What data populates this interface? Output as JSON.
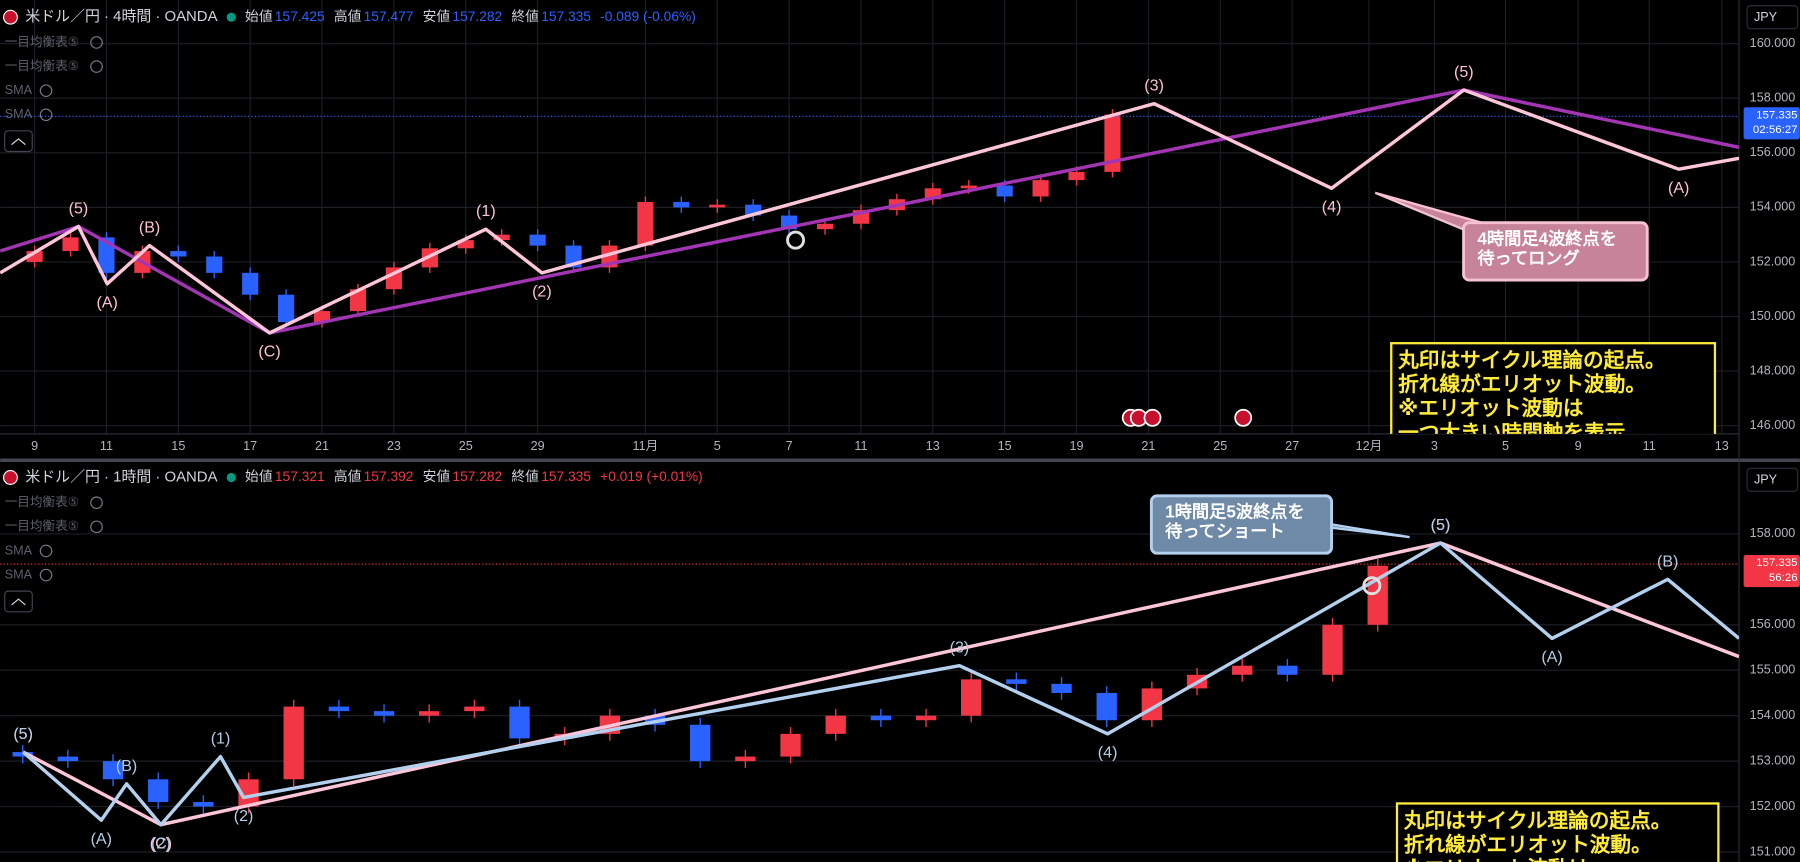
{
  "chart_data": [
    {
      "type": "candlestick",
      "title": "米ドル／円 · 4時間 · OANDA",
      "fields": [
        {
          "label": "始値",
          "value": 157.425
        },
        {
          "label": "高値",
          "value": 157.477
        },
        {
          "label": "安値",
          "value": 157.282
        },
        {
          "label": "終値",
          "value": 157.335
        }
      ],
      "change": "-0.089 (-0.06%)",
      "value_color": "#2962ff",
      "indicators": [
        "一目均衡表⑤",
        "一目均衡表⑤",
        "SMA",
        "SMA"
      ],
      "currency": "JPY",
      "last_price": 157.335,
      "countdown": "02:56:27",
      "last_color": "#2962ff",
      "up_color": "#f23645",
      "down_color": "#2962ff",
      "x": [
        0,
        0.5,
        1,
        1.5,
        2,
        2.5,
        3,
        3.5,
        4,
        4.5,
        5,
        5.5,
        6,
        6.5,
        7,
        7.5,
        8,
        8.5,
        9,
        9.5,
        10,
        10.5,
        11,
        11.5,
        12,
        12.5,
        13,
        13.5,
        14,
        14.5,
        15
      ],
      "open": [
        152.0,
        152.4,
        152.9,
        151.6,
        152.4,
        152.2,
        151.6,
        150.8,
        149.8,
        150.2,
        151.0,
        151.8,
        152.5,
        152.8,
        153.0,
        152.6,
        151.8,
        152.6,
        154.2,
        154.0,
        154.1,
        153.7,
        153.2,
        153.4,
        153.9,
        154.3,
        154.7,
        154.8,
        154.4,
        155.0,
        155.3
      ],
      "high": [
        152.6,
        153.1,
        153.1,
        152.6,
        152.6,
        152.4,
        151.8,
        151.0,
        150.4,
        151.2,
        152.0,
        152.7,
        153.0,
        153.2,
        153.2,
        152.8,
        152.8,
        154.4,
        154.4,
        154.3,
        154.3,
        153.9,
        153.6,
        154.1,
        154.5,
        154.9,
        155.0,
        155.0,
        155.2,
        155.5,
        157.6
      ],
      "low": [
        151.8,
        152.2,
        151.4,
        151.4,
        152.0,
        151.4,
        150.6,
        149.6,
        149.6,
        150.0,
        150.8,
        151.6,
        152.3,
        152.6,
        152.4,
        151.6,
        151.6,
        152.4,
        153.8,
        153.8,
        153.5,
        153.0,
        153.0,
        153.2,
        153.7,
        154.1,
        154.5,
        154.2,
        154.2,
        154.8,
        155.1
      ],
      "close": [
        152.4,
        152.9,
        151.6,
        152.4,
        152.2,
        151.6,
        150.8,
        149.8,
        150.2,
        151.0,
        151.8,
        152.5,
        152.8,
        153.0,
        152.6,
        151.8,
        152.6,
        154.2,
        154.0,
        154.1,
        153.7,
        153.2,
        153.4,
        153.9,
        154.3,
        154.7,
        154.8,
        154.4,
        155.0,
        155.3,
        157.4
      ],
      "xlim": [
        -0.48,
        23.72
      ],
      "xticks": [
        {
          "value": 0,
          "label": "9"
        },
        {
          "value": 1,
          "label": "11"
        },
        {
          "value": 2,
          "label": "15"
        },
        {
          "value": 3,
          "label": "17"
        },
        {
          "value": 4,
          "label": "21"
        },
        {
          "value": 5,
          "label": "23"
        },
        {
          "value": 6,
          "label": "25"
        },
        {
          "value": 7,
          "label": "29"
        },
        {
          "value": 8.5,
          "label": "11月"
        },
        {
          "value": 9.5,
          "label": "5"
        },
        {
          "value": 10.5,
          "label": "7"
        },
        {
          "value": 11.5,
          "label": "11"
        },
        {
          "value": 12.5,
          "label": "13"
        },
        {
          "value": 13.5,
          "label": "15"
        },
        {
          "value": 14.5,
          "label": "19"
        },
        {
          "value": 15.5,
          "label": "21"
        },
        {
          "value": 16.5,
          "label": "25"
        },
        {
          "value": 17.5,
          "label": "27"
        },
        {
          "value": 18.57,
          "label": "12月"
        },
        {
          "value": 19.48,
          "label": "3"
        },
        {
          "value": 20.47,
          "label": "5"
        },
        {
          "value": 21.48,
          "label": "9"
        },
        {
          "value": 22.47,
          "label": "11"
        },
        {
          "value": 23.48,
          "label": "13"
        }
      ],
      "ylim": [
        145.7,
        161.6
      ],
      "yticks": [
        {
          "value": 146,
          "label": "146.000"
        },
        {
          "value": 148,
          "label": "148.000"
        },
        {
          "value": 150,
          "label": "150.000"
        },
        {
          "value": 152,
          "label": "152.000"
        },
        {
          "value": 154,
          "label": "154.000"
        },
        {
          "value": 156,
          "label": "156.000"
        },
        {
          "value": 158,
          "label": "158.000"
        },
        {
          "value": 160,
          "label": "160.000"
        }
      ],
      "grid": true,
      "waves": [
        {
          "color": "#a335b5",
          "label_color": "#ffc0d8",
          "x": [
            -0.48,
            0.61,
            3.27,
            19.89,
            23.72
          ],
          "values": [
            152.4,
            153.3,
            149.4,
            158.3,
            156.2
          ],
          "labels": [
            null,
            null,
            null,
            null,
            null
          ]
        },
        {
          "color": "#ffc6d9",
          "label_color": "#ffc0d8",
          "x": [
            -0.48,
            0.61,
            1.01,
            1.6,
            3.27,
            6.28,
            7.06,
            15.58,
            18.05,
            19.89,
            22.88,
            23.72
          ],
          "values": [
            151.6,
            153.3,
            151.2,
            152.6,
            149.4,
            153.2,
            151.6,
            157.8,
            154.7,
            158.3,
            155.4,
            155.8
          ],
          "labels": [
            null,
            "(5)",
            "(A)",
            "(B)",
            "(C)",
            "(1)",
            "(2)",
            "(3)",
            "(4)",
            "(5)",
            "(A)",
            null
          ]
        }
      ],
      "cycle_marker": {
        "x": 10.59,
        "y": 152.8
      },
      "callout": {
        "lines": [
          "4時間足4波終点を",
          "待ってロング"
        ]
      },
      "note": {
        "lines": [
          "丸印はサイクル理論の起点。",
          "折れ線がエリオット波動。",
          "※エリオット波動は",
          "一つ大きい時間軸を表示"
        ]
      }
    },
    {
      "type": "candlestick",
      "title": "米ドル／円 · 1時間 · OANDA",
      "fields": [
        {
          "label": "始値",
          "value": 157.321
        },
        {
          "label": "高値",
          "value": 157.392
        },
        {
          "label": "安値",
          "value": 157.282
        },
        {
          "label": "終値",
          "value": 157.335
        }
      ],
      "change": "+0.019 (+0.01%)",
      "value_color": "#f23645",
      "indicators": [
        "一目均衡表⑤",
        "一目均衡表⑤",
        "SMA",
        "SMA"
      ],
      "currency": "JPY",
      "last_price": 157.335,
      "countdown": "56:26",
      "last_color": "#f23645",
      "up_color": "#f23645",
      "down_color": "#2962ff",
      "x": [
        0,
        1,
        2,
        3,
        4,
        5,
        6,
        7,
        8,
        9,
        10,
        11,
        12,
        13,
        14,
        15,
        16,
        17,
        18,
        19,
        20,
        21,
        22,
        23,
        24,
        25,
        26,
        27,
        28,
        29,
        30
      ],
      "open": [
        153.2,
        153.1,
        153.0,
        152.6,
        152.1,
        152.0,
        152.6,
        154.2,
        154.1,
        154.0,
        154.1,
        154.2,
        153.5,
        153.6,
        154.0,
        153.8,
        153.0,
        153.1,
        153.6,
        154.0,
        153.9,
        154.0,
        154.8,
        154.7,
        154.5,
        153.9,
        154.6,
        154.9,
        155.1,
        154.9,
        156.0
      ],
      "high": [
        153.35,
        153.25,
        153.15,
        152.75,
        152.25,
        152.75,
        154.35,
        154.35,
        154.25,
        154.25,
        154.35,
        154.35,
        153.75,
        154.15,
        154.15,
        153.95,
        153.25,
        153.75,
        154.15,
        154.15,
        154.15,
        154.95,
        154.95,
        154.85,
        154.65,
        154.75,
        155.05,
        155.25,
        155.25,
        156.15,
        157.45
      ],
      "low": [
        152.95,
        152.85,
        152.45,
        151.95,
        151.85,
        151.85,
        152.45,
        153.95,
        153.85,
        153.85,
        153.95,
        153.35,
        153.35,
        153.45,
        153.65,
        152.85,
        152.85,
        152.95,
        153.45,
        153.75,
        153.75,
        153.85,
        154.55,
        154.35,
        153.75,
        153.75,
        154.45,
        154.75,
        154.75,
        154.75,
        155.85
      ],
      "close": [
        153.1,
        153.0,
        152.6,
        152.1,
        152.0,
        152.6,
        154.2,
        154.1,
        154.0,
        154.1,
        154.2,
        153.5,
        153.6,
        154.0,
        153.8,
        153.0,
        153.1,
        153.6,
        154.0,
        153.9,
        154.0,
        154.8,
        154.7,
        154.5,
        153.9,
        154.6,
        154.9,
        155.1,
        154.9,
        156.0,
        157.3
      ],
      "xlim": [
        -0.5,
        38
      ],
      "ylim": [
        150.78,
        159.57
      ],
      "yticks": [
        {
          "value": 151,
          "label": "151.000"
        },
        {
          "value": 152,
          "label": "152.000"
        },
        {
          "value": 153,
          "label": "153.000"
        },
        {
          "value": 154,
          "label": "154.000"
        },
        {
          "value": 155,
          "label": "155.000"
        },
        {
          "value": 156,
          "label": "156.000"
        },
        {
          "value": 158,
          "label": "158.000"
        }
      ],
      "grid": true,
      "waves": [
        {
          "color": "#ffc6d9",
          "label_color": "#ffc0d8",
          "x": [
            0.01,
            3.06,
            31.39,
            38
          ],
          "values": [
            153.2,
            151.6,
            157.8,
            155.3
          ],
          "labels": [
            "(5)",
            "(C)",
            "(5)",
            null
          ]
        },
        {
          "color": "#b3d1ee",
          "label_color": "#b3cde6",
          "x": [
            0.01,
            1.74,
            2.3,
            3.06,
            4.38,
            4.89,
            20.74,
            24.02,
            31.39,
            33.86,
            36.42,
            38
          ],
          "values": [
            153.2,
            151.7,
            152.5,
            151.6,
            153.1,
            152.2,
            155.1,
            153.6,
            157.8,
            155.7,
            157.0,
            155.7
          ],
          "labels": [
            "(5)",
            "(A)",
            "(B)",
            "(2)",
            "(1)",
            "(2)",
            "(3)",
            "(4)",
            "(5)",
            "(A)",
            "(B)",
            null
          ]
        }
      ],
      "cycle_marker": {
        "x": 29.87,
        "y": 156.86
      },
      "callout": {
        "lines": [
          "1時間足5波終点を",
          "待ってショート"
        ]
      },
      "note": {
        "lines": [
          "丸印はサイクル理論の起点。",
          "折れ線がエリオット波動。",
          "※エリオット波動は"
        ]
      }
    }
  ]
}
